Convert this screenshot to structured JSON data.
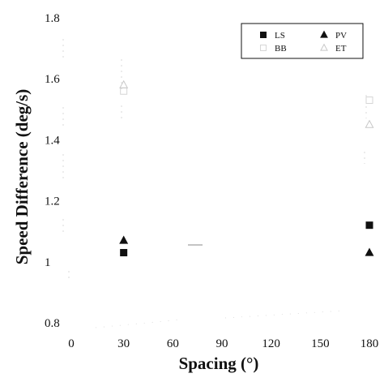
{
  "chart_data": {
    "type": "scatter",
    "xlabel": "Spacing (°)",
    "ylabel": "Speed Difference (deg/s)",
    "xlim": [
      0,
      180
    ],
    "ylim": [
      0.8,
      1.8
    ],
    "xticks": [
      0,
      30,
      60,
      90,
      120,
      150,
      180
    ],
    "yticks": [
      0.8,
      1,
      1.2,
      1.4,
      1.6,
      1.8
    ],
    "xtick_labels": [
      "0",
      "30",
      "60",
      "90",
      "120",
      "150",
      "180"
    ],
    "ytick_labels": [
      "0.8",
      "1",
      "1.2",
      "1.4",
      "1.6",
      "1.8"
    ],
    "legend_placement": "top-right",
    "series": [
      {
        "name": "LS",
        "marker": "filled-square",
        "color": "#111111",
        "points": [
          {
            "x": 30,
            "y": 1.03
          },
          {
            "x": 180,
            "y": 1.12
          }
        ]
      },
      {
        "name": "PV",
        "marker": "filled-triangle",
        "color": "#111111",
        "points": [
          {
            "x": 30,
            "y": 1.07
          },
          {
            "x": 180,
            "y": 1.03
          }
        ]
      },
      {
        "name": "BB",
        "marker": "faint-square",
        "color": "#d6d6d6",
        "points": [
          {
            "x": 30,
            "y": 1.56
          },
          {
            "x": 180,
            "y": 1.53
          }
        ]
      },
      {
        "name": "ET",
        "marker": "open-triangle",
        "color": "#c8c8c8",
        "points": [
          {
            "x": 30,
            "y": 1.58
          },
          {
            "x": 180,
            "y": 1.45
          }
        ]
      }
    ]
  }
}
